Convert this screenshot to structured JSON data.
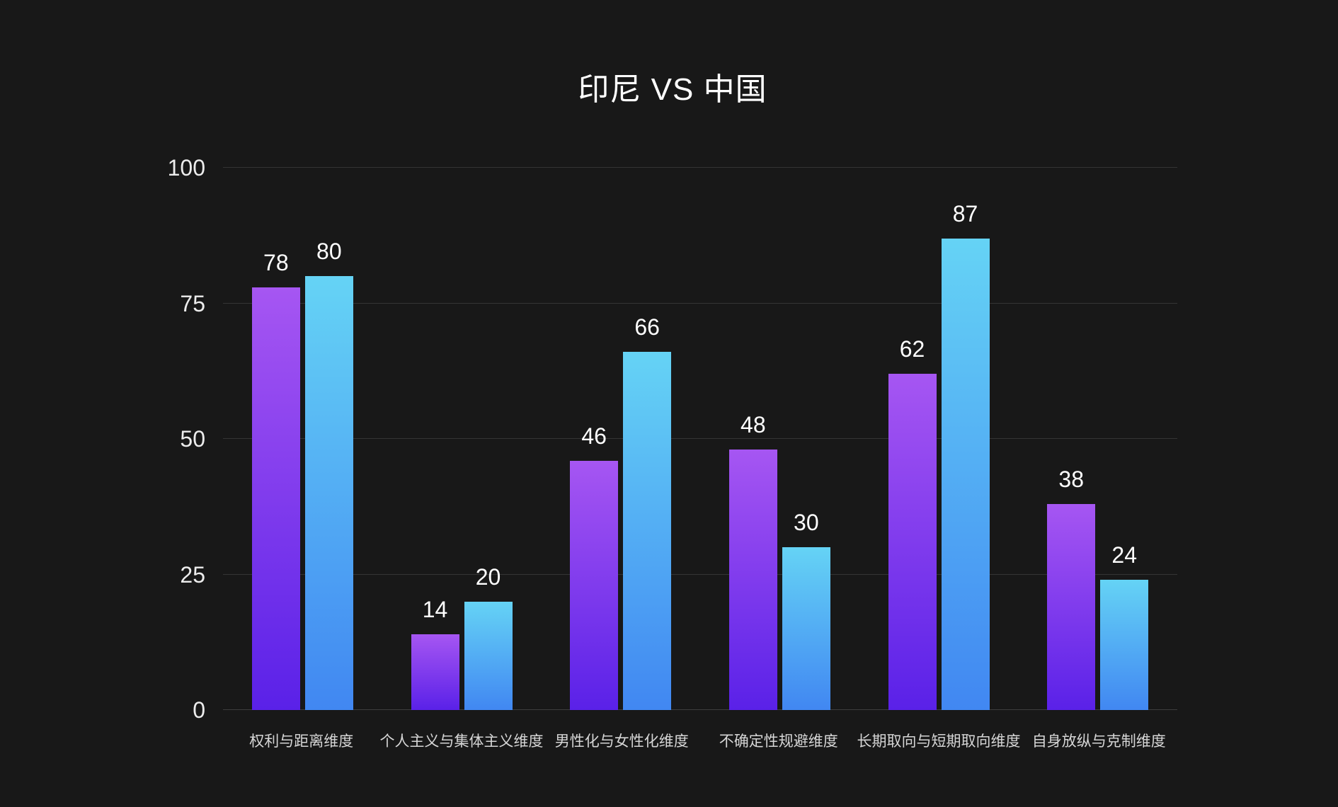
{
  "title": "印尼 VS 中国",
  "chart_data": {
    "type": "bar",
    "title": "印尼 VS 中国",
    "categories": [
      "权利与距离维度",
      "个人主义与集体主义维度",
      "男性化与女性化维度",
      "不确定性规避维度",
      "长期取向与短期取向维度",
      "自身放纵与克制维度"
    ],
    "series": [
      {
        "name": "印尼",
        "values": [
          78,
          14,
          46,
          48,
          62,
          38
        ],
        "gradient_top": "#a656f2",
        "gradient_bottom": "#5a21e8"
      },
      {
        "name": "中国",
        "values": [
          80,
          20,
          66,
          30,
          87,
          24
        ],
        "gradient_top": "#65d3f5",
        "gradient_bottom": "#4187f2"
      }
    ],
    "xlabel": "",
    "ylabel": "",
    "ylim": [
      0,
      100
    ],
    "yticks": [
      0,
      25,
      50,
      75,
      100
    ],
    "grid": true,
    "legend_position": "none",
    "value_labels": true,
    "colors": {
      "background": "#181818",
      "gridline": "#343434",
      "axis_baseline": "#3d3d3d",
      "title_text": "#ffffff",
      "value_label_text": "#ffffff",
      "y_tick_text": "#ececec",
      "category_text": "#d6d6d6"
    }
  }
}
